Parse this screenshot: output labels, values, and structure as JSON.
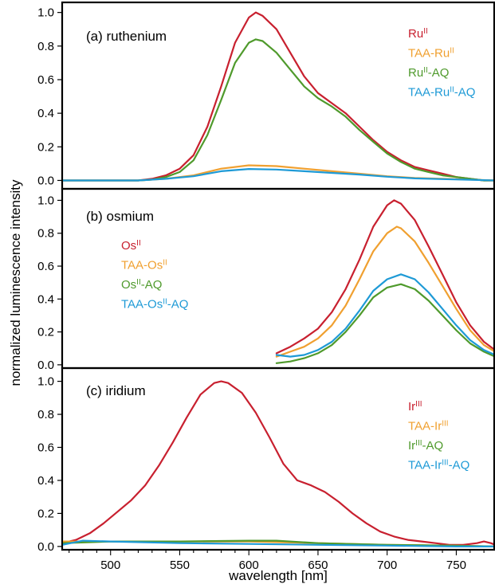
{
  "figure": {
    "ylabel": "normalized luminescence intensity",
    "xlabel": "wavelength [nm]"
  },
  "chart_data": [
    {
      "type": "line",
      "title": "(a) ruthenium",
      "xlim": [
        465,
        778
      ],
      "ylim": [
        -0.05,
        1.06
      ],
      "yticks": [
        "0.0",
        "0.2",
        "0.4",
        "0.6",
        "0.8",
        "1.0"
      ],
      "yticks_values": [
        0,
        0.2,
        0.4,
        0.6,
        0.8,
        1.0
      ],
      "legend_position": "top-right",
      "series": [
        {
          "name": "Ru",
          "sup": "II",
          "suffix": "",
          "color": "#c8202f",
          "x": [
            465,
            500,
            520,
            530,
            540,
            550,
            560,
            570,
            580,
            590,
            600,
            605,
            610,
            620,
            630,
            640,
            650,
            660,
            670,
            680,
            690,
            700,
            710,
            720,
            730,
            740,
            750,
            760,
            770,
            778
          ],
          "y": [
            0.0,
            0.0,
            0.0,
            0.01,
            0.03,
            0.07,
            0.15,
            0.32,
            0.56,
            0.82,
            0.97,
            1.0,
            0.98,
            0.9,
            0.76,
            0.62,
            0.52,
            0.46,
            0.4,
            0.32,
            0.24,
            0.17,
            0.12,
            0.08,
            0.06,
            0.04,
            0.02,
            0.01,
            0.0,
            0.0
          ]
        },
        {
          "name": "TAA-Ru",
          "sup": "II",
          "suffix": "",
          "color": "#f0a030",
          "x": [
            465,
            520,
            540,
            560,
            580,
            600,
            620,
            640,
            660,
            680,
            700,
            720,
            740,
            760,
            778
          ],
          "y": [
            0.0,
            0.0,
            0.01,
            0.03,
            0.07,
            0.09,
            0.085,
            0.07,
            0.055,
            0.04,
            0.025,
            0.015,
            0.01,
            0.005,
            0.0
          ]
        },
        {
          "name": "Ru",
          "sup": "II",
          "suffix": "-AQ",
          "color": "#4f9a2c",
          "x": [
            465,
            500,
            520,
            530,
            540,
            550,
            560,
            570,
            580,
            590,
            600,
            605,
            610,
            620,
            630,
            640,
            650,
            660,
            670,
            680,
            690,
            700,
            710,
            720,
            730,
            740,
            750,
            760,
            770,
            778
          ],
          "y": [
            0.0,
            0.0,
            0.0,
            0.005,
            0.02,
            0.05,
            0.12,
            0.27,
            0.48,
            0.7,
            0.82,
            0.84,
            0.83,
            0.76,
            0.66,
            0.56,
            0.49,
            0.44,
            0.38,
            0.3,
            0.23,
            0.16,
            0.11,
            0.07,
            0.05,
            0.03,
            0.02,
            0.01,
            0.0,
            0.0
          ]
        },
        {
          "name": "TAA-Ru",
          "sup": "II",
          "suffix": "-AQ",
          "color": "#1e9ad6",
          "x": [
            465,
            520,
            540,
            560,
            580,
            600,
            620,
            640,
            660,
            680,
            700,
            720,
            740,
            760,
            778
          ],
          "y": [
            0.0,
            0.0,
            0.01,
            0.025,
            0.055,
            0.068,
            0.065,
            0.055,
            0.045,
            0.035,
            0.022,
            0.012,
            0.008,
            0.004,
            0.0
          ]
        }
      ]
    },
    {
      "type": "line",
      "title": "(b) osmium",
      "xlim": [
        465,
        778
      ],
      "ylim": [
        -0.02,
        1.07
      ],
      "yticks": [
        "0.0",
        "0.2",
        "0.4",
        "0.6",
        "0.8",
        "1.0"
      ],
      "yticks_values": [
        0,
        0.2,
        0.4,
        0.6,
        0.8,
        1.0
      ],
      "legend_position": "middle-left",
      "series": [
        {
          "name": "Os",
          "sup": "II",
          "suffix": "",
          "color": "#c8202f",
          "x": [
            620,
            630,
            640,
            650,
            660,
            670,
            680,
            690,
            700,
            705,
            710,
            720,
            730,
            740,
            750,
            760,
            770,
            778
          ],
          "y": [
            0.07,
            0.11,
            0.16,
            0.22,
            0.32,
            0.46,
            0.64,
            0.84,
            0.97,
            1.0,
            0.98,
            0.88,
            0.72,
            0.55,
            0.38,
            0.24,
            0.14,
            0.09
          ]
        },
        {
          "name": "TAA-Os",
          "sup": "II",
          "suffix": "",
          "color": "#f0a030",
          "x": [
            620,
            630,
            640,
            650,
            660,
            670,
            680,
            690,
            700,
            707,
            710,
            720,
            730,
            740,
            750,
            760,
            770,
            778
          ],
          "y": [
            0.05,
            0.08,
            0.11,
            0.16,
            0.24,
            0.36,
            0.52,
            0.69,
            0.8,
            0.84,
            0.83,
            0.75,
            0.62,
            0.48,
            0.34,
            0.21,
            0.12,
            0.08
          ]
        },
        {
          "name": "Os",
          "sup": "II",
          "suffix": "-AQ",
          "color": "#4f9a2c",
          "x": [
            620,
            630,
            640,
            650,
            660,
            670,
            680,
            690,
            700,
            710,
            720,
            730,
            740,
            750,
            760,
            770,
            778
          ],
          "y": [
            0.01,
            0.02,
            0.04,
            0.07,
            0.12,
            0.2,
            0.3,
            0.41,
            0.47,
            0.49,
            0.46,
            0.39,
            0.3,
            0.21,
            0.13,
            0.08,
            0.05
          ]
        },
        {
          "name": "TAA-Os",
          "sup": "II",
          "suffix": "-AQ",
          "color": "#1e9ad6",
          "x": [
            620,
            630,
            640,
            650,
            660,
            670,
            680,
            690,
            700,
            710,
            720,
            730,
            740,
            750,
            760,
            770,
            778
          ],
          "y": [
            0.06,
            0.05,
            0.06,
            0.09,
            0.14,
            0.22,
            0.33,
            0.45,
            0.52,
            0.55,
            0.52,
            0.44,
            0.34,
            0.24,
            0.15,
            0.09,
            0.06
          ]
        }
      ]
    },
    {
      "type": "line",
      "title": "(c) iridium",
      "xlim": [
        465,
        778
      ],
      "ylim": [
        -0.02,
        1.08
      ],
      "yticks": [
        "0.0",
        "0.2",
        "0.4",
        "0.6",
        "0.8",
        "1.0"
      ],
      "yticks_values": [
        0,
        0.2,
        0.4,
        0.6,
        0.8,
        1.0
      ],
      "xticks": [
        "500",
        "550",
        "600",
        "650",
        "700",
        "750"
      ],
      "xticks_values": [
        500,
        550,
        600,
        650,
        700,
        750
      ],
      "legend_position": "top-right",
      "series": [
        {
          "name": "Ir",
          "sup": "III",
          "suffix": "",
          "color": "#c8202f",
          "x": [
            465,
            475,
            485,
            495,
            505,
            515,
            525,
            535,
            545,
            555,
            565,
            575,
            580,
            585,
            595,
            605,
            615,
            625,
            635,
            645,
            655,
            665,
            675,
            685,
            695,
            705,
            715,
            725,
            735,
            745,
            755,
            765,
            770,
            775,
            778
          ],
          "y": [
            0.02,
            0.04,
            0.08,
            0.14,
            0.21,
            0.28,
            0.37,
            0.49,
            0.63,
            0.78,
            0.92,
            0.99,
            1.0,
            0.99,
            0.93,
            0.81,
            0.66,
            0.5,
            0.4,
            0.37,
            0.33,
            0.27,
            0.2,
            0.14,
            0.09,
            0.06,
            0.04,
            0.03,
            0.02,
            0.01,
            0.01,
            0.02,
            0.03,
            0.02,
            0.01
          ]
        },
        {
          "name": "TAA-Ir",
          "sup": "III",
          "suffix": "",
          "color": "#f0a030",
          "x": [
            465,
            500,
            550,
            600,
            650,
            700,
            750,
            778
          ],
          "y": [
            0.03,
            0.03,
            0.03,
            0.03,
            0.02,
            0.01,
            0.005,
            0.0
          ]
        },
        {
          "name": "Ir",
          "sup": "III",
          "suffix": "-AQ",
          "color": "#4f9a2c",
          "x": [
            465,
            500,
            550,
            600,
            620,
            650,
            700,
            750,
            778
          ],
          "y": [
            0.02,
            0.03,
            0.03,
            0.035,
            0.035,
            0.02,
            0.01,
            0.005,
            0.0
          ]
        },
        {
          "name": "TAA-Ir",
          "sup": "III",
          "suffix": "-AQ",
          "color": "#1e9ad6",
          "x": [
            465,
            480,
            500,
            550,
            600,
            650,
            700,
            750,
            778
          ],
          "y": [
            0.01,
            0.035,
            0.03,
            0.02,
            0.015,
            0.01,
            0.005,
            0.0,
            0.0
          ]
        }
      ]
    }
  ]
}
